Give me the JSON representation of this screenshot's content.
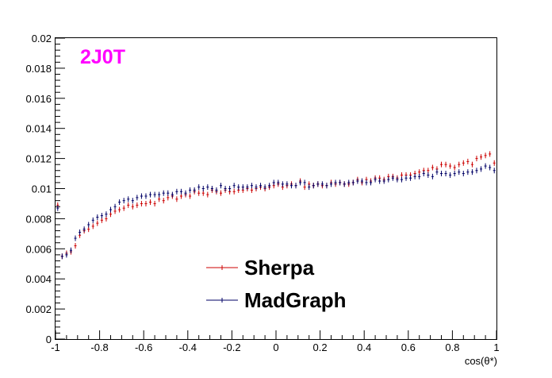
{
  "chart_data": {
    "type": "scatter",
    "title": "",
    "annotation": "2J0T",
    "annotation_color": "#ff00ff",
    "xlabel": "cos(θ*)",
    "ylabel": "",
    "xlim": [
      -1,
      1
    ],
    "ylim": [
      0,
      0.02
    ],
    "x_ticks": [
      "-1",
      "-0.8",
      "-0.6",
      "-0.4",
      "-0.2",
      "0",
      "0.2",
      "0.4",
      "0.6",
      "0.8",
      "1"
    ],
    "y_ticks": [
      "0",
      "0.002",
      "0.004",
      "0.006",
      "0.008",
      "0.01",
      "0.012",
      "0.014",
      "0.016",
      "0.018",
      "0.02"
    ],
    "legend_position": "bottom-center",
    "x": [
      -0.99,
      -0.97,
      -0.95,
      -0.93,
      -0.91,
      -0.89,
      -0.87,
      -0.85,
      -0.83,
      -0.81,
      -0.79,
      -0.77,
      -0.75,
      -0.73,
      -0.71,
      -0.69,
      -0.67,
      -0.65,
      -0.63,
      -0.61,
      -0.59,
      -0.57,
      -0.55,
      -0.53,
      -0.51,
      -0.49,
      -0.47,
      -0.45,
      -0.43,
      -0.41,
      -0.39,
      -0.37,
      -0.35,
      -0.33,
      -0.31,
      -0.29,
      -0.27,
      -0.25,
      -0.23,
      -0.21,
      -0.19,
      -0.17,
      -0.15,
      -0.13,
      -0.11,
      -0.09,
      -0.07,
      -0.05,
      -0.03,
      -0.01,
      0.01,
      0.03,
      0.05,
      0.07,
      0.09,
      0.11,
      0.13,
      0.15,
      0.17,
      0.19,
      0.21,
      0.23,
      0.25,
      0.27,
      0.29,
      0.31,
      0.33,
      0.35,
      0.37,
      0.39,
      0.41,
      0.43,
      0.45,
      0.47,
      0.49,
      0.51,
      0.53,
      0.55,
      0.57,
      0.59,
      0.61,
      0.63,
      0.65,
      0.67,
      0.69,
      0.71,
      0.73,
      0.75,
      0.77,
      0.79,
      0.81,
      0.83,
      0.85,
      0.87,
      0.89,
      0.91,
      0.93,
      0.95,
      0.97,
      0.99
    ],
    "series": [
      {
        "name": "Sherpa",
        "color": "#cc0000",
        "values": [
          0.0089,
          0.0055,
          0.0057,
          0.0058,
          0.0062,
          0.0069,
          0.0072,
          0.0073,
          0.0075,
          0.0077,
          0.0079,
          0.008,
          0.0083,
          0.0085,
          0.0086,
          0.0087,
          0.0089,
          0.0088,
          0.0089,
          0.009,
          0.009,
          0.0091,
          0.009,
          0.0093,
          0.0092,
          0.0094,
          0.0095,
          0.0093,
          0.0095,
          0.0096,
          0.0095,
          0.0098,
          0.0097,
          0.0097,
          0.0096,
          0.0099,
          0.0098,
          0.0097,
          0.0099,
          0.0098,
          0.0098,
          0.0099,
          0.0099,
          0.01,
          0.0099,
          0.01,
          0.0101,
          0.01,
          0.0101,
          0.0102,
          0.0103,
          0.0101,
          0.0102,
          0.0103,
          0.0102,
          0.0105,
          0.0101,
          0.0103,
          0.0102,
          0.0103,
          0.0102,
          0.0102,
          0.0104,
          0.0103,
          0.0104,
          0.0103,
          0.0103,
          0.0104,
          0.0106,
          0.0104,
          0.0106,
          0.0105,
          0.0107,
          0.0107,
          0.0106,
          0.0108,
          0.0108,
          0.0107,
          0.0109,
          0.0109,
          0.0109,
          0.011,
          0.0111,
          0.0112,
          0.0112,
          0.0114,
          0.0113,
          0.0116,
          0.0116,
          0.0115,
          0.0114,
          0.0116,
          0.0117,
          0.0118,
          0.0116,
          0.012,
          0.0121,
          0.0122,
          0.0123,
          0.0117
        ]
      },
      {
        "name": "MadGraph",
        "color": "#000066",
        "values": [
          0.0087,
          0.0055,
          0.0056,
          0.0059,
          0.0067,
          0.0071,
          0.0073,
          0.0076,
          0.0079,
          0.0081,
          0.0082,
          0.0083,
          0.0086,
          0.0088,
          0.0091,
          0.0092,
          0.0093,
          0.0092,
          0.0094,
          0.0095,
          0.0095,
          0.0096,
          0.0096,
          0.0096,
          0.0097,
          0.0097,
          0.0096,
          0.0098,
          0.0098,
          0.0097,
          0.0099,
          0.0099,
          0.0101,
          0.01,
          0.0101,
          0.01,
          0.0099,
          0.0102,
          0.01,
          0.01,
          0.0102,
          0.0101,
          0.0101,
          0.0101,
          0.0102,
          0.0101,
          0.0102,
          0.0101,
          0.0102,
          0.0104,
          0.0104,
          0.0103,
          0.0103,
          0.0102,
          0.0102,
          0.0104,
          0.0104,
          0.0101,
          0.0102,
          0.0103,
          0.0103,
          0.0102,
          0.0103,
          0.0104,
          0.0104,
          0.0103,
          0.0104,
          0.0104,
          0.0105,
          0.0105,
          0.0104,
          0.0104,
          0.0106,
          0.0105,
          0.0105,
          0.0106,
          0.0107,
          0.0106,
          0.0106,
          0.0107,
          0.0107,
          0.0108,
          0.0108,
          0.011,
          0.0109,
          0.0108,
          0.0111,
          0.011,
          0.011,
          0.0109,
          0.011,
          0.0111,
          0.011,
          0.0111,
          0.0111,
          0.0112,
          0.0113,
          0.0115,
          0.0114,
          0.0112
        ]
      }
    ]
  }
}
